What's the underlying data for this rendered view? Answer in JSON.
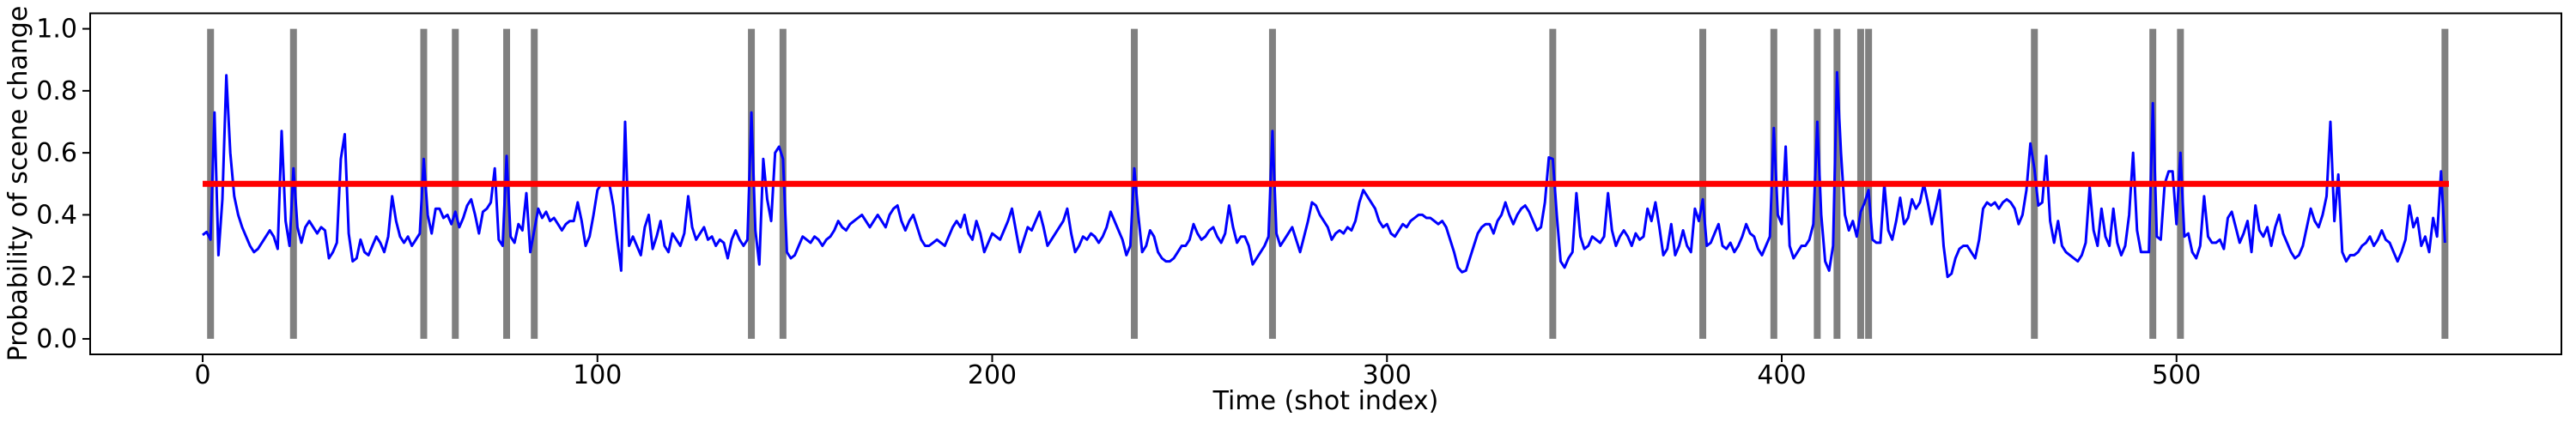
{
  "figure": {
    "background_color": "#ffffff",
    "spine_color": "#000000"
  },
  "chart_data": {
    "type": "line",
    "title": "",
    "xlabel": "Time (shot index)",
    "ylabel": "Probability of scene change",
    "xlim": [
      -28.5,
      597.5
    ],
    "ylim": [
      -0.05,
      1.05
    ],
    "grid": false,
    "legend": "none",
    "xticks": {
      "values": [
        0,
        100,
        200,
        300,
        400,
        500
      ],
      "labels": [
        "0",
        "100",
        "200",
        "300",
        "400",
        "500"
      ]
    },
    "yticks": {
      "values": [
        0.0,
        0.2,
        0.4,
        0.6,
        0.8,
        1.0
      ],
      "labels": [
        "0.0",
        "0.2",
        "0.4",
        "0.6",
        "0.8",
        "1.0"
      ]
    },
    "threshold_line": {
      "name": "threshold",
      "value": 0.5,
      "x_start": 0,
      "x_end": 569,
      "color": "#ff0000",
      "line_width": 7
    },
    "scene_change_markers": {
      "name": "detected scene changes",
      "color": "#808080",
      "line_width": 8,
      "y_start": 0.0,
      "y_end": 1.0,
      "x_positions": [
        2,
        23,
        56,
        64,
        77,
        84,
        139,
        147,
        236,
        271,
        342,
        380,
        398,
        409,
        414,
        420,
        422,
        464,
        494,
        501,
        568
      ]
    },
    "series": [
      {
        "name": "scene change probability",
        "color": "#0000ff",
        "line_width": 3,
        "x_start": 0,
        "x_step": 1,
        "values": [
          0.335,
          0.345,
          0.32,
          0.73,
          0.27,
          0.45,
          0.85,
          0.6,
          0.46,
          0.4,
          0.36,
          0.33,
          0.3,
          0.28,
          0.29,
          0.31,
          0.33,
          0.35,
          0.33,
          0.29,
          0.67,
          0.38,
          0.3,
          0.55,
          0.36,
          0.31,
          0.36,
          0.38,
          0.36,
          0.34,
          0.36,
          0.35,
          0.26,
          0.28,
          0.31,
          0.58,
          0.66,
          0.34,
          0.25,
          0.26,
          0.32,
          0.28,
          0.27,
          0.3,
          0.33,
          0.31,
          0.28,
          0.33,
          0.46,
          0.38,
          0.33,
          0.31,
          0.33,
          0.3,
          0.32,
          0.34,
          0.58,
          0.4,
          0.34,
          0.42,
          0.42,
          0.39,
          0.4,
          0.37,
          0.41,
          0.36,
          0.39,
          0.43,
          0.45,
          0.4,
          0.34,
          0.41,
          0.42,
          0.44,
          0.55,
          0.32,
          0.3,
          0.59,
          0.33,
          0.31,
          0.37,
          0.35,
          0.47,
          0.28,
          0.35,
          0.42,
          0.39,
          0.41,
          0.38,
          0.39,
          0.37,
          0.35,
          0.37,
          0.38,
          0.38,
          0.44,
          0.38,
          0.3,
          0.33,
          0.4,
          0.48,
          0.5,
          0.5,
          0.5,
          0.43,
          0.32,
          0.22,
          0.7,
          0.3,
          0.33,
          0.3,
          0.27,
          0.36,
          0.4,
          0.29,
          0.33,
          0.38,
          0.3,
          0.28,
          0.34,
          0.32,
          0.3,
          0.34,
          0.46,
          0.36,
          0.32,
          0.34,
          0.36,
          0.32,
          0.33,
          0.3,
          0.32,
          0.31,
          0.26,
          0.32,
          0.35,
          0.32,
          0.3,
          0.32,
          0.73,
          0.35,
          0.24,
          0.58,
          0.45,
          0.38,
          0.6,
          0.62,
          0.58,
          0.28,
          0.26,
          0.27,
          0.3,
          0.33,
          0.32,
          0.31,
          0.33,
          0.32,
          0.3,
          0.32,
          0.33,
          0.35,
          0.38,
          0.36,
          0.35,
          0.37,
          0.38,
          0.39,
          0.4,
          0.38,
          0.36,
          0.38,
          0.4,
          0.38,
          0.36,
          0.4,
          0.42,
          0.43,
          0.38,
          0.35,
          0.38,
          0.4,
          0.36,
          0.32,
          0.3,
          0.3,
          0.31,
          0.32,
          0.31,
          0.3,
          0.33,
          0.36,
          0.38,
          0.36,
          0.4,
          0.34,
          0.32,
          0.38,
          0.34,
          0.28,
          0.31,
          0.34,
          0.33,
          0.32,
          0.35,
          0.38,
          0.42,
          0.35,
          0.28,
          0.32,
          0.36,
          0.35,
          0.38,
          0.41,
          0.36,
          0.3,
          0.32,
          0.34,
          0.36,
          0.38,
          0.42,
          0.34,
          0.28,
          0.3,
          0.33,
          0.32,
          0.34,
          0.33,
          0.31,
          0.33,
          0.36,
          0.41,
          0.38,
          0.35,
          0.32,
          0.27,
          0.3,
          0.55,
          0.4,
          0.28,
          0.3,
          0.35,
          0.33,
          0.28,
          0.26,
          0.25,
          0.25,
          0.26,
          0.28,
          0.3,
          0.3,
          0.32,
          0.37,
          0.34,
          0.32,
          0.33,
          0.35,
          0.36,
          0.33,
          0.31,
          0.34,
          0.43,
          0.36,
          0.31,
          0.33,
          0.33,
          0.3,
          0.24,
          0.26,
          0.28,
          0.3,
          0.33,
          0.67,
          0.34,
          0.3,
          0.32,
          0.34,
          0.36,
          0.32,
          0.28,
          0.33,
          0.38,
          0.44,
          0.43,
          0.4,
          0.38,
          0.36,
          0.32,
          0.34,
          0.35,
          0.34,
          0.36,
          0.35,
          0.38,
          0.44,
          0.48,
          0.46,
          0.44,
          0.42,
          0.38,
          0.36,
          0.37,
          0.34,
          0.33,
          0.35,
          0.37,
          0.36,
          0.38,
          0.39,
          0.4,
          0.4,
          0.39,
          0.39,
          0.38,
          0.37,
          0.38,
          0.36,
          0.32,
          0.28,
          0.23,
          0.215,
          0.22,
          0.26,
          0.3,
          0.34,
          0.36,
          0.37,
          0.37,
          0.34,
          0.38,
          0.4,
          0.44,
          0.4,
          0.37,
          0.4,
          0.42,
          0.43,
          0.41,
          0.38,
          0.35,
          0.36,
          0.44,
          0.585,
          0.58,
          0.4,
          0.25,
          0.23,
          0.26,
          0.28,
          0.47,
          0.33,
          0.29,
          0.3,
          0.33,
          0.32,
          0.31,
          0.33,
          0.47,
          0.35,
          0.3,
          0.33,
          0.35,
          0.33,
          0.3,
          0.34,
          0.32,
          0.33,
          0.42,
          0.38,
          0.44,
          0.36,
          0.27,
          0.29,
          0.37,
          0.27,
          0.3,
          0.35,
          0.3,
          0.28,
          0.42,
          0.38,
          0.45,
          0.3,
          0.31,
          0.34,
          0.37,
          0.3,
          0.29,
          0.31,
          0.28,
          0.3,
          0.33,
          0.37,
          0.34,
          0.33,
          0.29,
          0.27,
          0.3,
          0.33,
          0.68,
          0.4,
          0.37,
          0.62,
          0.3,
          0.26,
          0.28,
          0.3,
          0.3,
          0.32,
          0.37,
          0.7,
          0.4,
          0.25,
          0.22,
          0.3,
          0.86,
          0.6,
          0.4,
          0.35,
          0.38,
          0.33,
          0.41,
          0.44,
          0.48,
          0.32,
          0.31,
          0.31,
          0.5,
          0.35,
          0.32,
          0.38,
          0.455,
          0.37,
          0.39,
          0.45,
          0.42,
          0.44,
          0.5,
          0.44,
          0.37,
          0.42,
          0.48,
          0.3,
          0.2,
          0.21,
          0.26,
          0.29,
          0.3,
          0.3,
          0.28,
          0.26,
          0.32,
          0.42,
          0.44,
          0.43,
          0.44,
          0.42,
          0.44,
          0.45,
          0.44,
          0.42,
          0.37,
          0.4,
          0.48,
          0.63,
          0.55,
          0.43,
          0.44,
          0.59,
          0.38,
          0.31,
          0.38,
          0.3,
          0.28,
          0.27,
          0.26,
          0.25,
          0.27,
          0.31,
          0.49,
          0.35,
          0.3,
          0.42,
          0.33,
          0.3,
          0.42,
          0.31,
          0.27,
          0.3,
          0.4,
          0.6,
          0.35,
          0.28,
          0.28,
          0.28,
          0.76,
          0.33,
          0.32,
          0.5,
          0.54,
          0.54,
          0.37,
          0.6,
          0.33,
          0.34,
          0.28,
          0.26,
          0.3,
          0.46,
          0.33,
          0.31,
          0.31,
          0.32,
          0.29,
          0.39,
          0.41,
          0.36,
          0.31,
          0.34,
          0.38,
          0.28,
          0.43,
          0.35,
          0.33,
          0.36,
          0.3,
          0.36,
          0.4,
          0.34,
          0.31,
          0.28,
          0.26,
          0.27,
          0.3,
          0.36,
          0.42,
          0.38,
          0.36,
          0.4,
          0.46,
          0.7,
          0.38,
          0.53,
          0.28,
          0.25,
          0.27,
          0.27,
          0.28,
          0.3,
          0.31,
          0.33,
          0.3,
          0.32,
          0.35,
          0.32,
          0.31,
          0.28,
          0.25,
          0.28,
          0.32,
          0.43,
          0.36,
          0.39,
          0.3,
          0.33,
          0.28,
          0.39,
          0.33,
          0.54,
          0.31
        ]
      }
    ]
  }
}
